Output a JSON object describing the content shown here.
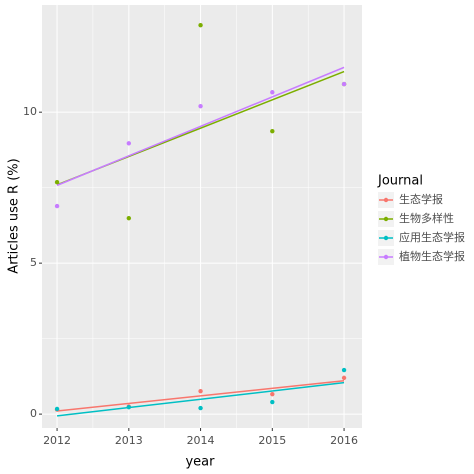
{
  "chart_data": {
    "type": "scatter",
    "x_label": "year",
    "y_label": "Articles use R (%)",
    "x": [
      2012,
      2013,
      2014,
      2015,
      2016
    ],
    "xlim": [
      2011.79,
      2016.25
    ],
    "ylim": [
      -0.46,
      13.55
    ],
    "xticks": [
      2012,
      2013,
      2014,
      2015,
      2016
    ],
    "yticks": [
      0,
      5,
      10
    ],
    "grid": true,
    "trend_lines": true,
    "legend_title": "Journal",
    "legend_position": "right",
    "series": [
      {
        "name": "生态学报",
        "color": "#F8766D",
        "values": [
          0.15,
          0.25,
          0.76,
          0.66,
          1.2
        ]
      },
      {
        "name": "生物多样性",
        "color": "#7CAE00",
        "values": [
          7.68,
          6.49,
          12.88,
          9.37,
          10.93
        ]
      },
      {
        "name": "应用生态学报",
        "color": "#00BFC4",
        "values": [
          0.17,
          0.23,
          0.2,
          0.4,
          1.46
        ]
      },
      {
        "name": "植物生态学报",
        "color": "#C77CFF",
        "values": [
          6.89,
          8.97,
          10.2,
          10.66,
          10.93
        ]
      }
    ]
  }
}
